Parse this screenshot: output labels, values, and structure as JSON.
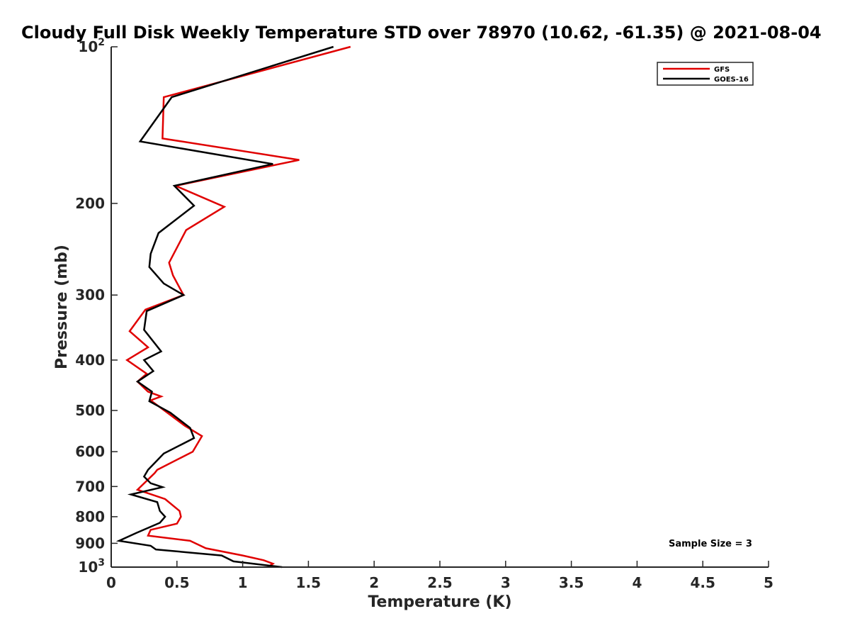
{
  "chart_data": {
    "type": "line",
    "title": "Cloudy Full Disk Weekly Temperature STD over 78970 (10.62, -61.35) @ 2021-08-04",
    "xlabel": "Temperature (K)",
    "ylabel": "Pressure (mb)",
    "xlim": [
      0,
      5
    ],
    "ylim": [
      100,
      1000
    ],
    "y_scale": "log",
    "y_reversed": true,
    "x_ticks": [
      "0",
      "0.5",
      "1",
      "1.5",
      "2",
      "2.5",
      "3",
      "3.5",
      "4",
      "4.5",
      "5"
    ],
    "y_ticks": [
      {
        "value": 100,
        "base": "10",
        "exp": "2"
      },
      {
        "value": 200,
        "label": "200"
      },
      {
        "value": 300,
        "label": "300"
      },
      {
        "value": 400,
        "label": "400"
      },
      {
        "value": 500,
        "label": "500"
      },
      {
        "value": 600,
        "label": "600"
      },
      {
        "value": 700,
        "label": "700"
      },
      {
        "value": 800,
        "label": "800"
      },
      {
        "value": 900,
        "label": "900"
      },
      {
        "value": 1000,
        "base": "10",
        "exp": "3"
      }
    ],
    "legend_position": "top-right",
    "annotation": "Sample Size = 3",
    "series": [
      {
        "name": "GFS",
        "color": "#e00000",
        "points": [
          [
            1.82,
            100
          ],
          [
            0.4,
            125
          ],
          [
            0.39,
            150
          ],
          [
            1.43,
            165
          ],
          [
            0.49,
            185
          ],
          [
            0.86,
            203
          ],
          [
            0.57,
            225
          ],
          [
            0.44,
            260
          ],
          [
            0.47,
            275
          ],
          [
            0.55,
            300
          ],
          [
            0.26,
            320
          ],
          [
            0.14,
            352
          ],
          [
            0.28,
            378
          ],
          [
            0.12,
            400
          ],
          [
            0.27,
            425
          ],
          [
            0.2,
            440
          ],
          [
            0.28,
            460
          ],
          [
            0.38,
            470
          ],
          [
            0.3,
            478
          ],
          [
            0.45,
            510
          ],
          [
            0.56,
            535
          ],
          [
            0.69,
            560
          ],
          [
            0.62,
            600
          ],
          [
            0.35,
            650
          ],
          [
            0.33,
            660
          ],
          [
            0.2,
            710
          ],
          [
            0.41,
            740
          ],
          [
            0.52,
            780
          ],
          [
            0.53,
            800
          ],
          [
            0.5,
            825
          ],
          [
            0.3,
            848
          ],
          [
            0.28,
            870
          ],
          [
            0.6,
            890
          ],
          [
            0.72,
            920
          ],
          [
            1.0,
            950
          ],
          [
            1.16,
            970
          ],
          [
            1.23,
            985
          ],
          [
            1.19,
            1000
          ]
        ]
      },
      {
        "name": "GOES-16",
        "color": "#000000",
        "points": [
          [
            1.69,
            100
          ],
          [
            0.46,
            125
          ],
          [
            0.22,
            152
          ],
          [
            1.23,
            168
          ],
          [
            0.48,
            185
          ],
          [
            0.63,
            202
          ],
          [
            0.36,
            228
          ],
          [
            0.3,
            250
          ],
          [
            0.29,
            265
          ],
          [
            0.4,
            285
          ],
          [
            0.55,
            300
          ],
          [
            0.27,
            322
          ],
          [
            0.25,
            350
          ],
          [
            0.38,
            385
          ],
          [
            0.25,
            400
          ],
          [
            0.32,
            420
          ],
          [
            0.2,
            440
          ],
          [
            0.31,
            460
          ],
          [
            0.29,
            480
          ],
          [
            0.45,
            505
          ],
          [
            0.6,
            540
          ],
          [
            0.63,
            565
          ],
          [
            0.4,
            605
          ],
          [
            0.28,
            650
          ],
          [
            0.25,
            670
          ],
          [
            0.3,
            690
          ],
          [
            0.39,
            702
          ],
          [
            0.15,
            725
          ],
          [
            0.35,
            750
          ],
          [
            0.37,
            780
          ],
          [
            0.41,
            800
          ],
          [
            0.37,
            822
          ],
          [
            0.19,
            860
          ],
          [
            0.06,
            890
          ],
          [
            0.3,
            910
          ],
          [
            0.34,
            925
          ],
          [
            0.84,
            950
          ],
          [
            0.93,
            975
          ],
          [
            1.3,
            1000
          ]
        ]
      }
    ]
  }
}
